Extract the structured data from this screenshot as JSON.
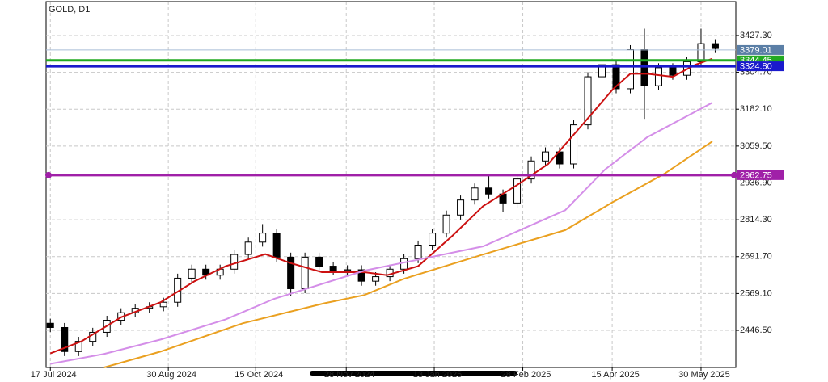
{
  "chart_data": {
    "type": "candlestick",
    "title": "GOLD, D1",
    "x": [
      0,
      5,
      10,
      15,
      20,
      25,
      30,
      35,
      40,
      45,
      50,
      55,
      60,
      65,
      70,
      75,
      80,
      85,
      90,
      95,
      100,
      105,
      110,
      115,
      120,
      125,
      130,
      135,
      140,
      145,
      150,
      155,
      160,
      165,
      170,
      175,
      180,
      185,
      190,
      195,
      200,
      205,
      210,
      215,
      220,
      225,
      230,
      235
    ],
    "open": [
      2470,
      2456,
      2376,
      2410,
      2440,
      2480,
      2505,
      2520,
      2525,
      2540,
      2620,
      2650,
      2630,
      2650,
      2699,
      2740,
      2770,
      2690,
      2585,
      2690,
      2660,
      2645,
      2648,
      2610,
      2625,
      2650,
      2685,
      2730,
      2770,
      2830,
      2880,
      2920,
      2900,
      2870,
      2950,
      3010,
      3040,
      3000,
      3130,
      3290,
      3330,
      3250,
      3380,
      3260,
      3320,
      3295,
      3340,
      3400
    ],
    "high": [
      2485,
      2471,
      2425,
      2455,
      2495,
      2520,
      2535,
      2540,
      2555,
      2635,
      2665,
      2665,
      2665,
      2714,
      2755,
      2800,
      2785,
      2705,
      2705,
      2705,
      2675,
      2663,
      2663,
      2640,
      2665,
      2700,
      2745,
      2785,
      2845,
      2895,
      2935,
      2960,
      2915,
      2965,
      3025,
      3055,
      3055,
      3145,
      3305,
      3500,
      3345,
      3395,
      3450,
      3335,
      3335,
      3355,
      3450,
      3415
    ],
    "low": [
      2441,
      2361,
      2361,
      2395,
      2425,
      2465,
      2490,
      2505,
      2510,
      2525,
      2605,
      2615,
      2615,
      2635,
      2684,
      2725,
      2675,
      2560,
      2570,
      2645,
      2630,
      2630,
      2595,
      2595,
      2610,
      2635,
      2670,
      2715,
      2755,
      2815,
      2865,
      2885,
      2840,
      2855,
      2935,
      2995,
      2985,
      2985,
      3115,
      3210,
      3235,
      3235,
      3150,
      3245,
      3280,
      3280,
      3325,
      3369
    ],
    "close": [
      2456,
      2376,
      2410,
      2440,
      2480,
      2505,
      2520,
      2525,
      2540,
      2620,
      2650,
      2630,
      2650,
      2699,
      2740,
      2770,
      2690,
      2585,
      2690,
      2660,
      2645,
      2648,
      2610,
      2625,
      2650,
      2685,
      2730,
      2770,
      2830,
      2880,
      2920,
      2900,
      2870,
      2950,
      3010,
      3040,
      3000,
      3130,
      3290,
      3330,
      3250,
      3380,
      3260,
      3320,
      3295,
      3340,
      3400,
      3384
    ],
    "lines": [
      {
        "color": "#cc1111",
        "x": [
          0,
          11,
          25,
          39,
          51,
          62,
          76,
          85,
          96,
          111,
          119,
          130,
          142,
          153,
          165,
          176,
          188,
          199,
          205,
          211,
          220,
          228,
          234
        ],
        "values": [
          2370,
          2410,
          2490,
          2540,
          2610,
          2660,
          2700,
          2670,
          2640,
          2640,
          2630,
          2660,
          2760,
          2860,
          2930,
          3000,
          3130,
          3250,
          3300,
          3300,
          3290,
          3330,
          3350
        ]
      },
      {
        "color": "#d48ee8",
        "x": [
          0,
          19,
          39,
          62,
          79,
          111,
          153,
          182,
          196,
          211,
          234
        ],
        "values": [
          2335,
          2368,
          2416,
          2483,
          2551,
          2645,
          2726,
          2846,
          2981,
          3089,
          3204
        ]
      },
      {
        "color": "#eaa020",
        "x": [
          19,
          39,
          68,
          97,
          111,
          125,
          153,
          182,
          199,
          217,
          234
        ],
        "values": [
          2323,
          2376,
          2470,
          2537,
          2564,
          2618,
          2699,
          2780,
          2874,
          2967,
          3075
        ]
      }
    ],
    "levels": [
      {
        "value": 3379.01,
        "color": "#a9bdd6",
        "box": "#5b7fa6"
      },
      {
        "value": 3344.45,
        "color": "#22aa22",
        "box": "#22aa22"
      },
      {
        "value": 3324.8,
        "label": "3324.80",
        "color": "#1a1acc",
        "box": "#1a1acc"
      },
      {
        "value": 2962.75,
        "color": "#a020a8",
        "box": "#a020a8"
      }
    ],
    "xlim": [
      -1.5,
      242.3
    ],
    "ylim": [
      2323,
      3540
    ],
    "xticks": [
      {
        "value": 0,
        "label": "17 Jul 2024"
      },
      {
        "value": 41.7,
        "label": "30 Aug 2024"
      },
      {
        "value": 72.6,
        "label": "15 Oct 2024"
      },
      {
        "value": 104.6,
        "label": "28 Nov 2024"
      },
      {
        "value": 135.7,
        "label": "13 Jan 2025"
      },
      {
        "value": 167,
        "label": "28 Feb 2025"
      },
      {
        "value": 198.6,
        "label": "15 Apr 2025"
      },
      {
        "value": 230,
        "label": "30 May 2025"
      }
    ],
    "yticks": [
      {
        "value": 3427.3,
        "label": "3427.30"
      },
      {
        "value": 3304.7,
        "label": "3304.70"
      },
      {
        "value": 3182.1,
        "label": "3182.10"
      },
      {
        "value": 3059.5,
        "label": "3059.50"
      },
      {
        "value": 2936.9,
        "label": "2936.90"
      },
      {
        "value": 2814.3,
        "label": "2814.30"
      },
      {
        "value": 2691.7,
        "label": "2691.70"
      },
      {
        "value": 2569.1,
        "label": "2569.10"
      },
      {
        "value": 2446.5,
        "label": "2446.50"
      }
    ],
    "grid": true
  }
}
